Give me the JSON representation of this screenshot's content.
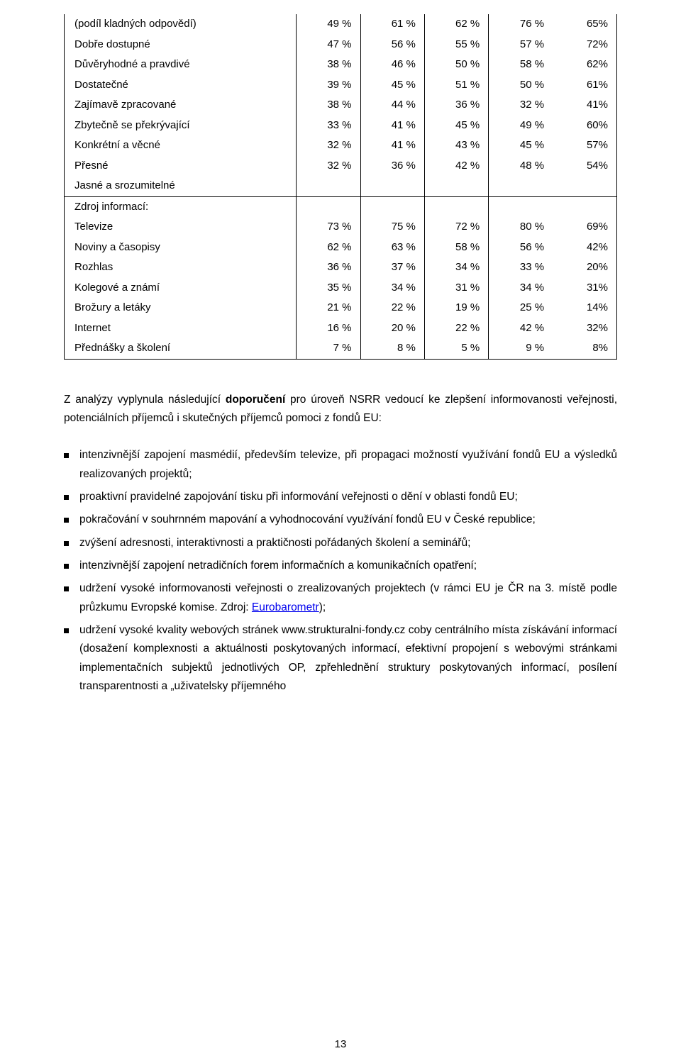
{
  "table": {
    "columns_width": [
      "42%",
      "11.6%",
      "11.6%",
      "11.6%",
      "11.6%",
      "11.6%"
    ],
    "rows": [
      {
        "label": "(podíl kladných odpovědí)",
        "values": [
          "49 %",
          "61 %",
          "62 %",
          "76 %",
          "65%"
        ]
      },
      {
        "label": "Dobře dostupné",
        "values": [
          "47 %",
          "56 %",
          "55 %",
          "57 %",
          "72%"
        ]
      },
      {
        "label": "Důvěryhodné a pravdivé",
        "values": [
          "38 %",
          "46 %",
          "50 %",
          "58 %",
          "62%"
        ]
      },
      {
        "label": "Dostatečné",
        "values": [
          "39 %",
          "45 %",
          "51 %",
          "50 %",
          "61%"
        ]
      },
      {
        "label": "Zajímavě zpracované",
        "values": [
          "38 %",
          "44 %",
          "36 %",
          "32 %",
          "41%"
        ]
      },
      {
        "label": "Zbytečně se překrývající",
        "values": [
          "33 %",
          "41 %",
          "45 %",
          "49 %",
          "60%"
        ]
      },
      {
        "label": "Konkrétní a věcné",
        "values": [
          "32 %",
          "41 %",
          "43 %",
          "45 %",
          "57%"
        ]
      },
      {
        "label": "Přesné",
        "values": [
          "32 %",
          "36 %",
          "42 %",
          "48 %",
          "54%"
        ]
      },
      {
        "label": "Jasné a srozumitelné",
        "values": [
          "",
          "",
          "",
          "",
          ""
        ],
        "section_end": true
      },
      {
        "label": "Zdroj informací:",
        "values": [
          "",
          "",
          "",
          "",
          ""
        ]
      },
      {
        "label": "Televize",
        "values": [
          "73 %",
          "75 %",
          "72 %",
          "80 %",
          "69%"
        ]
      },
      {
        "label": "Noviny a časopisy",
        "values": [
          "62 %",
          "63 %",
          "58 %",
          "56 %",
          "42%"
        ]
      },
      {
        "label": "Rozhlas",
        "values": [
          "36 %",
          "37 %",
          "34 %",
          "33 %",
          "20%"
        ]
      },
      {
        "label": "Kolegové a známí",
        "values": [
          "35 %",
          "34 %",
          "31 %",
          "34 %",
          "31%"
        ]
      },
      {
        "label": "Brožury a letáky",
        "values": [
          "21 %",
          "22 %",
          "19 %",
          "25 %",
          "14%"
        ]
      },
      {
        "label": "Internet",
        "values": [
          "16 %",
          "20 %",
          "22 %",
          "42 %",
          "32%"
        ]
      },
      {
        "label": "Přednášky a školení",
        "values": [
          "7 %",
          "8 %",
          "5 %",
          "9 %",
          "8%"
        ]
      }
    ]
  },
  "paragraph": {
    "pre": "Z analýzy vyplynula následující ",
    "bold": "doporučení",
    "post": " pro úroveň NSRR vedoucí ke zlepšení informovanosti veřejnosti, potenciálních příjemců i skutečných příjemců pomoci z fondů EU:"
  },
  "bullets": [
    {
      "text": "intenzivnější zapojení masmédií, především televize, při propagaci možností využívání fondů EU a výsledků realizovaných projektů;"
    },
    {
      "text": "proaktivní pravidelné zapojování tisku při informování veřejnosti o dění v oblasti fondů EU;"
    },
    {
      "text": "pokračování v souhrnném mapování a vyhodnocování využívání fondů EU v České republice;"
    },
    {
      "text": "zvýšení adresnosti, interaktivnosti a praktičnosti pořádaných školení a seminářů;"
    },
    {
      "text": "intenzivnější zapojení netradičních forem informačních a komunikačních opatření;"
    },
    {
      "text_pre": "udržení vysoké informovanosti veřejnosti o zrealizovaných projektech (v rámci EU je ČR na 3. místě podle průzkumu Evropské komise. Zdroj: ",
      "link_text": "Eurobarometr",
      "text_post": ");"
    },
    {
      "text": "udržení vysoké kvality webových stránek www.strukturalni-fondy.cz coby centrálního místa získávání informací (dosažení komplexnosti a aktuálnosti poskytovaných informací, efektivní propojení s webovými stránkami implementačních subjektů jednotlivých OP, zpřehlednění struktury poskytovaných informací, posílení transparentnosti a „uživatelsky příjemného"
    }
  ],
  "page_number": "13"
}
